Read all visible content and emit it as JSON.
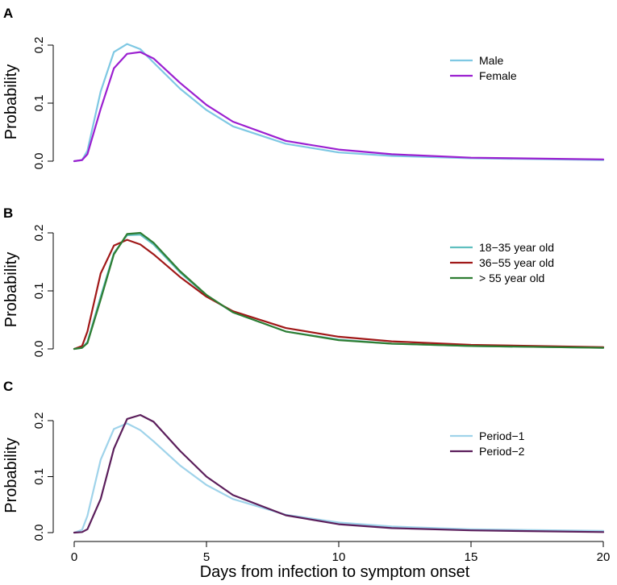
{
  "figure": {
    "xlabel": "Days from infection to symptom onset"
  },
  "chart_data": [
    {
      "type": "line",
      "panel": "A",
      "title": "",
      "xlabel": "",
      "ylabel": "Probability",
      "xlim": [
        0,
        20
      ],
      "ylim": [
        0,
        0.2
      ],
      "yticks": [
        0.0,
        0.1,
        0.2
      ],
      "ytick_labels": [
        "0.0",
        "0.1",
        "0.2"
      ],
      "legend_position": "top-right",
      "series": [
        {
          "name": "Male",
          "color": "#7ec8e3",
          "x": [
            0,
            0.3,
            0.5,
            1,
            1.5,
            2,
            2.5,
            3,
            4,
            5,
            6,
            8,
            10,
            12,
            15,
            20
          ],
          "values": [
            0,
            0.002,
            0.018,
            0.12,
            0.188,
            0.202,
            0.193,
            0.17,
            0.125,
            0.088,
            0.06,
            0.03,
            0.015,
            0.009,
            0.005,
            0.002
          ]
        },
        {
          "name": "Female",
          "color": "#9b1fd0",
          "x": [
            0,
            0.3,
            0.5,
            1,
            1.5,
            2,
            2.5,
            3,
            4,
            5,
            6,
            8,
            10,
            12,
            15,
            20
          ],
          "values": [
            0,
            0.002,
            0.012,
            0.09,
            0.16,
            0.185,
            0.188,
            0.177,
            0.135,
            0.097,
            0.068,
            0.035,
            0.02,
            0.012,
            0.006,
            0.003
          ]
        }
      ]
    },
    {
      "type": "line",
      "panel": "B",
      "title": "",
      "xlabel": "",
      "ylabel": "Probability",
      "xlim": [
        0,
        20
      ],
      "ylim": [
        0,
        0.2
      ],
      "yticks": [
        0.0,
        0.1,
        0.2
      ],
      "ytick_labels": [
        "0.0",
        "0.1",
        "0.2"
      ],
      "legend_position": "top-right",
      "series": [
        {
          "name": "18−35 year old",
          "color": "#5fbfbf",
          "x": [
            0,
            0.3,
            0.5,
            1,
            1.5,
            2,
            2.5,
            3,
            4,
            5,
            6,
            8,
            10,
            12,
            15,
            20
          ],
          "values": [
            0,
            0.002,
            0.012,
            0.09,
            0.165,
            0.196,
            0.197,
            0.18,
            0.132,
            0.092,
            0.063,
            0.03,
            0.016,
            0.009,
            0.005,
            0.002
          ]
        },
        {
          "name": "36−55 year old",
          "color": "#a01818",
          "x": [
            0,
            0.3,
            0.5,
            1,
            1.5,
            2,
            2.5,
            3,
            4,
            5,
            6,
            8,
            10,
            12,
            15,
            20
          ],
          "values": [
            0,
            0.005,
            0.03,
            0.13,
            0.178,
            0.188,
            0.18,
            0.163,
            0.124,
            0.09,
            0.065,
            0.036,
            0.021,
            0.013,
            0.007,
            0.003
          ]
        },
        {
          "name": "> 55 year old",
          "color": "#2e7d32",
          "x": [
            0,
            0.3,
            0.5,
            1,
            1.5,
            2,
            2.5,
            3,
            4,
            5,
            6,
            8,
            10,
            12,
            15,
            20
          ],
          "values": [
            0,
            0.002,
            0.01,
            0.085,
            0.163,
            0.198,
            0.2,
            0.183,
            0.134,
            0.093,
            0.063,
            0.03,
            0.015,
            0.009,
            0.005,
            0.002
          ]
        }
      ]
    },
    {
      "type": "line",
      "panel": "C",
      "title": "",
      "xlabel": "",
      "ylabel": "Probability",
      "xlim": [
        0,
        20
      ],
      "ylim": [
        0,
        0.2
      ],
      "yticks": [
        0.0,
        0.1,
        0.2
      ],
      "ytick_labels": [
        "0.0",
        "0.1",
        "0.2"
      ],
      "legend_position": "top-right",
      "series": [
        {
          "name": "Period−1",
          "color": "#9fd3ea",
          "x": [
            0,
            0.3,
            0.5,
            1,
            1.5,
            2,
            2.5,
            3,
            4,
            5,
            6,
            8,
            10,
            12,
            15,
            20
          ],
          "values": [
            0,
            0.005,
            0.03,
            0.13,
            0.185,
            0.195,
            0.183,
            0.163,
            0.12,
            0.085,
            0.06,
            0.032,
            0.018,
            0.011,
            0.006,
            0.003
          ]
        },
        {
          "name": "Period−2",
          "color": "#5b1e5b",
          "x": [
            0,
            0.3,
            0.5,
            1,
            1.5,
            2,
            2.5,
            3,
            4,
            5,
            6,
            8,
            10,
            12,
            15,
            20
          ],
          "values": [
            0,
            0.001,
            0.006,
            0.06,
            0.15,
            0.203,
            0.21,
            0.198,
            0.146,
            0.1,
            0.067,
            0.031,
            0.015,
            0.008,
            0.004,
            0.001
          ]
        }
      ]
    }
  ]
}
